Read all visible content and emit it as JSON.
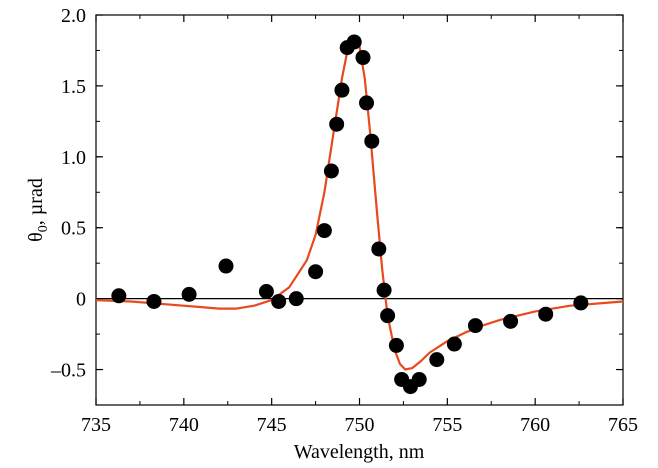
{
  "chart_data": {
    "type": "scatter",
    "title": "",
    "xlabel": "Wavelength, nm",
    "ylabel_main": "θ",
    "ylabel_sub": "0",
    "ylabel_rest": ", µrad",
    "xlim": [
      735,
      765
    ],
    "ylim": [
      -0.75,
      2.0
    ],
    "xticks": [
      735,
      740,
      745,
      750,
      755,
      760,
      765
    ],
    "yticks": [
      -0.5,
      0,
      0.5,
      1.0,
      1.5,
      2.0
    ],
    "ytick_labels": [
      "–0.5",
      "0",
      "0.5",
      "1.0",
      "1.5",
      "2.0"
    ],
    "zero_line": true,
    "grid": false,
    "colors": {
      "points": "#000000",
      "fit": "#e8491d",
      "zero_line": "#000000"
    },
    "series": [
      {
        "kind": "points",
        "x": [
          736.3,
          738.3,
          740.3,
          742.4,
          744.7,
          745.4,
          746.4,
          747.5,
          748.0,
          748.4,
          748.7,
          749.0,
          749.3,
          749.7,
          750.2,
          750.4,
          750.7,
          751.1,
          751.4,
          751.6,
          752.1,
          752.4,
          752.9,
          753.4,
          754.4,
          755.4,
          756.6,
          758.6,
          760.6,
          762.6
        ],
        "y": [
          0.02,
          -0.02,
          0.03,
          0.23,
          0.05,
          -0.02,
          0.0,
          0.19,
          0.48,
          0.9,
          1.23,
          1.47,
          1.77,
          1.81,
          1.7,
          1.38,
          1.11,
          0.35,
          0.06,
          -0.12,
          -0.33,
          -0.57,
          -0.62,
          -0.57,
          -0.43,
          -0.32,
          -0.19,
          -0.16,
          -0.11,
          -0.03
        ]
      },
      {
        "kind": "fit",
        "x": [
          735,
          737,
          739,
          741,
          742,
          743,
          744,
          745,
          746,
          747,
          747.5,
          748,
          748.5,
          749,
          749.3,
          749.6,
          749.8,
          750,
          750.3,
          750.6,
          751,
          751.3,
          751.6,
          752,
          752.3,
          752.6,
          753,
          753.5,
          754,
          755,
          756,
          757,
          758,
          759,
          760,
          761,
          762,
          763,
          764,
          765
        ],
        "y": [
          -0.01,
          -0.02,
          -0.04,
          -0.06,
          -0.07,
          -0.07,
          -0.05,
          -0.01,
          0.08,
          0.27,
          0.45,
          0.75,
          1.15,
          1.55,
          1.74,
          1.84,
          1.85,
          1.78,
          1.55,
          1.18,
          0.6,
          0.2,
          -0.12,
          -0.36,
          -0.46,
          -0.5,
          -0.49,
          -0.44,
          -0.38,
          -0.3,
          -0.24,
          -0.19,
          -0.15,
          -0.12,
          -0.09,
          -0.07,
          -0.05,
          -0.04,
          -0.03,
          -0.02
        ]
      }
    ]
  }
}
